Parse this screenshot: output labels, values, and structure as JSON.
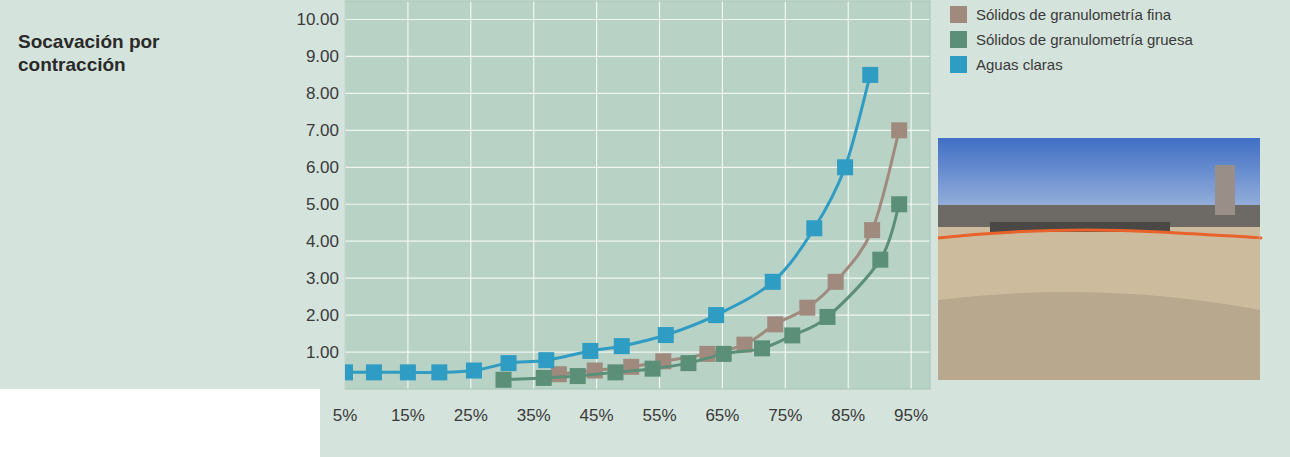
{
  "chart_data": {
    "type": "line",
    "title": "Socavación por contracción",
    "xlim": [
      5,
      98
    ],
    "xticks": [
      {
        "value": 5,
        "label": "5%"
      },
      {
        "value": 15,
        "label": "15%"
      },
      {
        "value": 25,
        "label": "25%"
      },
      {
        "value": 35,
        "label": "35%"
      },
      {
        "value": 45,
        "label": "45%"
      },
      {
        "value": 55,
        "label": "55%"
      },
      {
        "value": 65,
        "label": "65%"
      },
      {
        "value": 75,
        "label": "75%"
      },
      {
        "value": 85,
        "label": "85%"
      },
      {
        "value": 95,
        "label": "95%"
      }
    ],
    "ylim": [
      0,
      10.5
    ],
    "yticks": [
      {
        "value": 1,
        "label": "1.00"
      },
      {
        "value": 2,
        "label": "2.00"
      },
      {
        "value": 3,
        "label": "3.00"
      },
      {
        "value": 4,
        "label": "4.00"
      },
      {
        "value": 5,
        "label": "5.00"
      },
      {
        "value": 6,
        "label": "6.00"
      },
      {
        "value": 7,
        "label": "7.00"
      },
      {
        "value": 8,
        "label": "8.00"
      },
      {
        "value": 9,
        "label": "9.00"
      },
      {
        "value": 10,
        "label": "10.00"
      }
    ],
    "grid": true,
    "legend": "upper right",
    "marker": "square",
    "line_style": "solid",
    "series": [
      {
        "name": "Sólidos de granulometría fina",
        "color": "#a08a7e",
        "x": [
          39,
          44.7,
          50.5,
          55.6,
          62.6,
          68.5,
          73.4,
          78.5,
          83,
          88.8,
          93.1
        ],
        "values": [
          0.4,
          0.5,
          0.6,
          0.75,
          0.95,
          1.2,
          1.75,
          2.2,
          2.9,
          4.3,
          7.0
        ]
      },
      {
        "name": "Sólidos de granulometría gruesa",
        "color": "#5b8f78",
        "x": [
          30.2,
          36.6,
          42,
          48,
          53.9,
          59.6,
          65.2,
          71.3,
          76.1,
          81.7,
          90.1,
          93.1
        ],
        "values": [
          0.25,
          0.3,
          0.35,
          0.45,
          0.55,
          0.7,
          0.95,
          1.1,
          1.45,
          1.95,
          3.5,
          5.0
        ]
      },
      {
        "name": "Aguas claras",
        "color": "#2f9cc4",
        "x": [
          5,
          9.6,
          15,
          20,
          25.5,
          31,
          37,
          44,
          49,
          56,
          64,
          73,
          79.6,
          84.5,
          88.5
        ],
        "values": [
          0.45,
          0.45,
          0.45,
          0.45,
          0.5,
          0.7,
          0.78,
          1.03,
          1.16,
          1.46,
          2.0,
          2.9,
          4.35,
          6.0,
          8.5
        ]
      }
    ]
  }
}
